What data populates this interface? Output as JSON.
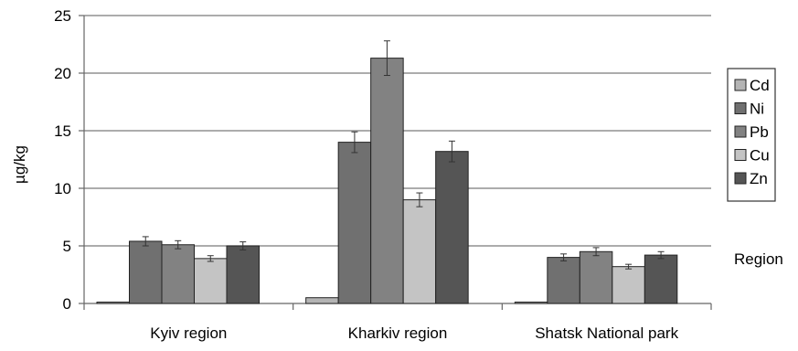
{
  "chart_data": {
    "type": "bar",
    "xlabel": "Region",
    "ylabel": "µg/kg",
    "ylim": [
      0,
      25
    ],
    "yticks": [
      "0",
      "5",
      "10",
      "15",
      "20",
      "25"
    ],
    "grid": true,
    "legend_position": "right",
    "categories": [
      "Kyiv region",
      "Kharkiv region",
      "Shatsk National park"
    ],
    "series": [
      {
        "name": "Cd",
        "color": "#b4b4b4",
        "values": [
          0.1,
          0.5,
          0.05
        ],
        "errors": [
          0,
          0,
          0
        ]
      },
      {
        "name": "Ni",
        "color": "#707070",
        "values": [
          5.4,
          14.0,
          4.0
        ],
        "errors": [
          0.4,
          0.9,
          0.3
        ]
      },
      {
        "name": "Pb",
        "color": "#828282",
        "values": [
          5.1,
          21.3,
          4.5
        ],
        "errors": [
          0.35,
          1.5,
          0.35
        ]
      },
      {
        "name": "Cu",
        "color": "#c4c4c4",
        "values": [
          3.9,
          9.0,
          3.2
        ],
        "errors": [
          0.25,
          0.6,
          0.2
        ]
      },
      {
        "name": "Zn",
        "color": "#555555",
        "values": [
          5.0,
          13.2,
          4.2
        ],
        "errors": [
          0.35,
          0.9,
          0.3
        ]
      }
    ]
  }
}
